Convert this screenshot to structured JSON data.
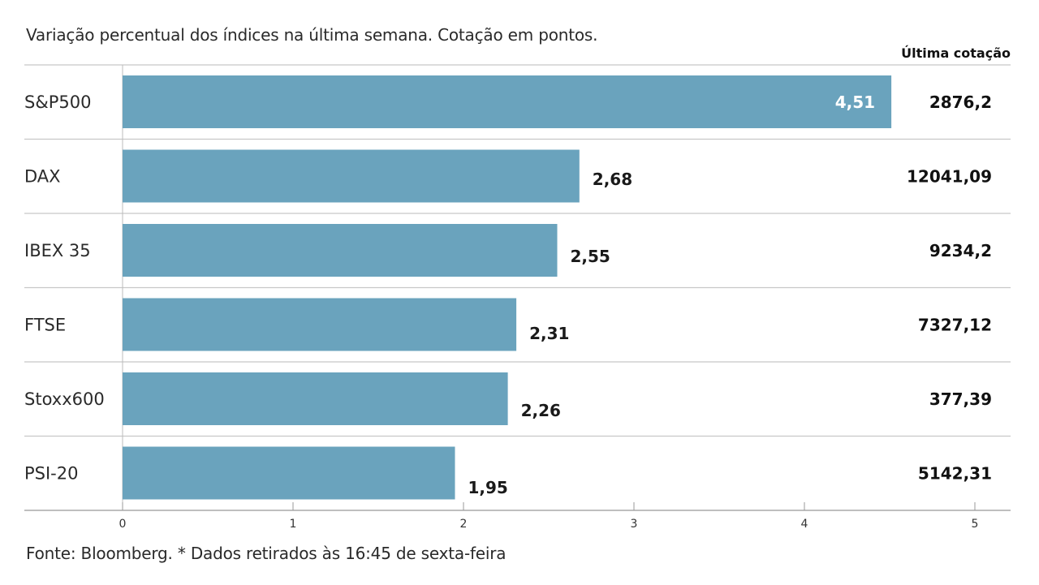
{
  "chart_data": {
    "type": "bar",
    "orientation": "horizontal",
    "subtitle": "Variação percentual dos índices na última semana. Cotação em pontos.",
    "column_header": "Última cotação",
    "categories": [
      "S&P500",
      "DAX",
      "IBEX 35",
      "FTSE",
      "Stoxx600",
      "PSI-20"
    ],
    "values": [
      4.51,
      2.68,
      2.55,
      2.31,
      2.26,
      1.95
    ],
    "value_labels": [
      "4,51",
      "2,68",
      "2,55",
      "2,31",
      "2,26",
      "1,95"
    ],
    "last_quote": [
      "2876,2",
      "12041,09",
      "9234,2",
      "7327,12",
      "377,39",
      "5142,31"
    ],
    "xlim": [
      0,
      5
    ],
    "x_ticks": [
      0,
      1,
      2,
      3,
      4,
      5
    ],
    "x_tick_labels": [
      "0",
      "1",
      "2",
      "3",
      "4",
      "5"
    ],
    "bar_color": "#6aa3bd",
    "footer": "Fonte: Bloomberg.  * Dados retirados às 16:45 de sexta-feira"
  }
}
